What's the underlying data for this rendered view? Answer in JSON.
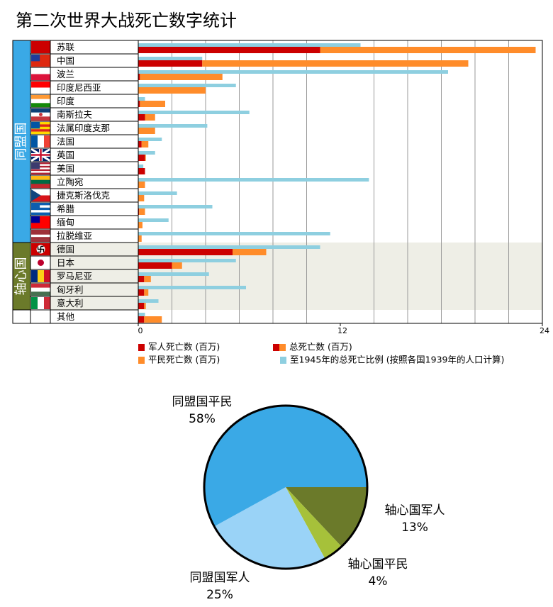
{
  "chart_data": [
    {
      "type": "hbar",
      "title": "第二次世界大战死亡数字统计",
      "groups": [
        {
          "name": "同盟国",
          "color": "#3aa9e6",
          "categories": [
            "苏联",
            "中国",
            "波兰",
            "印度尼西亚",
            "印度",
            "南斯拉夫",
            "法属印度支那",
            "法国",
            "英国",
            "美国",
            "立陶宛",
            "捷克斯洛伐克",
            "希腊",
            "缅甸",
            "拉脱维亚"
          ]
        },
        {
          "name": "轴心国",
          "color": "#6b7a2a",
          "categories": [
            "德国",
            "日本",
            "罗马尼亚",
            "匈牙利",
            "意大利"
          ]
        },
        {
          "name": null,
          "color": null,
          "categories": [
            "其他"
          ]
        }
      ],
      "series": [
        {
          "name": "军人死亡数 (百万)",
          "color": "#cc0000",
          "values": [
            10.8,
            3.8,
            0.1,
            0,
            0.1,
            0.4,
            0,
            0.2,
            0.4,
            0.4,
            0,
            0,
            0.05,
            0,
            0,
            5.6,
            2.0,
            0.35,
            0.35,
            0.35,
            0.35
          ]
        },
        {
          "name": "平民死亡数 (百万)",
          "color": "#ff8c2a",
          "values": [
            12.8,
            15.8,
            4.9,
            4.0,
            1.5,
            0.6,
            1.0,
            0.4,
            0.05,
            0,
            0.4,
            0.35,
            0.35,
            0.25,
            0.2,
            2.0,
            0.6,
            0.4,
            0.25,
            0.1,
            1.05
          ]
        },
        {
          "name": "至1945年的总死亡比例 (按照各国1939年的人口计算)",
          "color": "#8ecfe0",
          "values": [
            13.2,
            3.8,
            18.4,
            5.8,
            0.4,
            6.6,
            4.1,
            1.4,
            1.0,
            0.3,
            13.7,
            2.3,
            4.4,
            1.8,
            11.4,
            10.8,
            5.8,
            4.2,
            6.4,
            1.2,
            0.4
          ]
        }
      ],
      "legend_total": "总死亡数 (百万)",
      "xlim": [
        0,
        24
      ],
      "xticks": [
        0,
        12,
        24
      ],
      "minor_xticks": [
        2,
        4,
        6,
        8,
        10,
        14,
        16,
        18,
        20,
        22
      ],
      "grid": true,
      "axis_background": "#eeeee6"
    },
    {
      "type": "pie",
      "categories": [
        "轴心国军人",
        "轴心国平民",
        "同盟国军人",
        "同盟国平民"
      ],
      "values": [
        13,
        4,
        25,
        58
      ],
      "value_labels": [
        "13%",
        "4%",
        "25%",
        "58%"
      ],
      "colors": [
        "#6b7a2a",
        "#a6c13a",
        "#9ad3f7",
        "#3aa9e6"
      ]
    }
  ]
}
